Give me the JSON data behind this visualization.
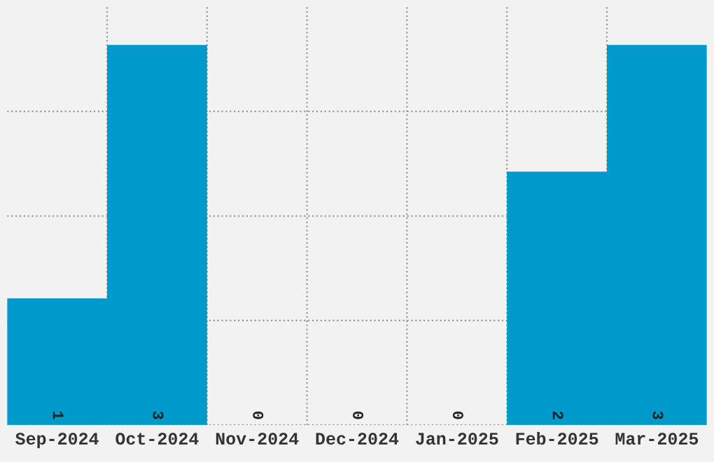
{
  "chart_data": {
    "type": "bar",
    "categories": [
      "Sep-2024",
      "Oct-2024",
      "Nov-2024",
      "Dec-2024",
      "Jan-2025",
      "Feb-2025",
      "Mar-2025"
    ],
    "values": [
      1,
      3,
      0,
      0,
      0,
      2,
      3
    ],
    "color": "#0099cc",
    "data_labels": true,
    "grid": true,
    "tick_labels": "x",
    "ylim": [
      0,
      3.3
    ],
    "yticks": [
      {
        "value": 0,
        "label": null
      },
      {
        "value": 0.825,
        "label": null
      },
      {
        "value": 1.65,
        "label": null
      },
      {
        "value": 2.475,
        "label": null
      }
    ]
  }
}
